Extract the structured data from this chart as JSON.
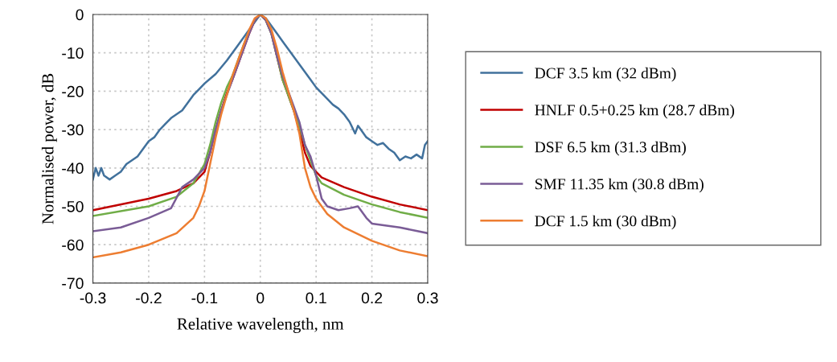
{
  "chart_data": {
    "type": "line",
    "xlabel": "Relative wavelength, nm",
    "ylabel": "Normalised power, dB",
    "xlim": [
      -0.3,
      0.3
    ],
    "xticks": [
      -0.3,
      -0.2,
      -0.1,
      0,
      0.1,
      0.2,
      0.3
    ],
    "ylim": [
      -70,
      0
    ],
    "yticks": [
      -70,
      -60,
      -50,
      -40,
      -30,
      -20,
      -10,
      0
    ],
    "grid": true,
    "legend": "right",
    "marker": "none",
    "line_style": "solid",
    "series": [
      {
        "name": "DCF 3.5 km (32 dBm)",
        "color": "#41719c",
        "x": [
          -0.3,
          -0.295,
          -0.29,
          -0.285,
          -0.28,
          -0.27,
          -0.26,
          -0.25,
          -0.24,
          -0.23,
          -0.22,
          -0.21,
          -0.2,
          -0.19,
          -0.18,
          -0.17,
          -0.16,
          -0.15,
          -0.14,
          -0.13,
          -0.12,
          -0.11,
          -0.1,
          -0.08,
          -0.06,
          -0.04,
          -0.02,
          -0.01,
          0,
          0.01,
          0.02,
          0.03,
          0.04,
          0.05,
          0.06,
          0.07,
          0.08,
          0.09,
          0.1,
          0.12,
          0.13,
          0.14,
          0.15,
          0.16,
          0.17,
          0.175,
          0.18,
          0.19,
          0.2,
          0.21,
          0.22,
          0.23,
          0.24,
          0.25,
          0.26,
          0.27,
          0.28,
          0.29,
          0.295,
          0.3
        ],
        "values": [
          -43,
          -40,
          -42,
          -40,
          -42,
          -43,
          -42,
          -41,
          -39,
          -38,
          -37,
          -35,
          -33,
          -32,
          -30,
          -28.5,
          -27,
          -26,
          -25,
          -23,
          -21,
          -19.5,
          -18,
          -15.5,
          -12,
          -8,
          -4,
          -2,
          0,
          -1,
          -3,
          -5,
          -7,
          -9,
          -11,
          -13,
          -15,
          -17,
          -19,
          -22,
          -23.5,
          -24.5,
          -26,
          -28,
          -31,
          -29,
          -30,
          -32,
          -33,
          -34,
          -33.5,
          -35,
          -36,
          -38,
          -37,
          -37.5,
          -36.5,
          -37.5,
          -34,
          -33
        ]
      },
      {
        "name": "HNLF 0.5+0.25 km (28.7 dBm)",
        "color": "#c00000",
        "x": [
          -0.3,
          -0.2,
          -0.15,
          -0.12,
          -0.1,
          -0.09,
          -0.08,
          -0.07,
          -0.06,
          -0.05,
          -0.04,
          -0.03,
          -0.02,
          -0.01,
          0,
          0.01,
          0.02,
          0.03,
          0.04,
          0.05,
          0.06,
          0.07,
          0.08,
          0.09,
          0.1,
          0.11,
          0.15,
          0.2,
          0.25,
          0.3
        ],
        "values": [
          -51,
          -48,
          -46,
          -44,
          -41,
          -36,
          -30,
          -25,
          -20.5,
          -17,
          -13,
          -9,
          -5,
          -1.5,
          0,
          -1.5,
          -5,
          -11,
          -17,
          -21,
          -25,
          -30,
          -36,
          -39.5,
          -41,
          -42.5,
          -45,
          -47.5,
          -49.5,
          -51
        ]
      },
      {
        "name": "DSF 6.5 km (31.3 dBm)",
        "color": "#70ad47",
        "x": [
          -0.3,
          -0.2,
          -0.15,
          -0.12,
          -0.1,
          -0.09,
          -0.08,
          -0.07,
          -0.06,
          -0.05,
          -0.04,
          -0.03,
          -0.02,
          -0.01,
          0,
          0.01,
          0.02,
          0.03,
          0.04,
          0.05,
          0.06,
          0.07,
          0.08,
          0.09,
          0.1,
          0.11,
          0.15,
          0.2,
          0.25,
          0.3
        ],
        "values": [
          -52.5,
          -50,
          -47.5,
          -44,
          -39,
          -34,
          -28,
          -23,
          -19,
          -16,
          -12,
          -8,
          -4.5,
          -1.5,
          0,
          -1.5,
          -5,
          -11,
          -17,
          -21,
          -25,
          -29,
          -34,
          -38,
          -42,
          -44,
          -47,
          -49.5,
          -51.5,
          -53
        ]
      },
      {
        "name": "SMF 11.35 km (30.8 dBm)",
        "color": "#7a5c96",
        "x": [
          -0.3,
          -0.25,
          -0.2,
          -0.16,
          -0.14,
          -0.12,
          -0.1,
          -0.09,
          -0.08,
          -0.07,
          -0.06,
          -0.05,
          -0.04,
          -0.03,
          -0.02,
          -0.01,
          0,
          0.01,
          0.02,
          0.03,
          0.04,
          0.05,
          0.06,
          0.07,
          0.08,
          0.09,
          0.1,
          0.11,
          0.12,
          0.14,
          0.16,
          0.175,
          0.19,
          0.2,
          0.25,
          0.3
        ],
        "values": [
          -56.5,
          -55.5,
          -53,
          -50.5,
          -45,
          -43,
          -40,
          -36,
          -30,
          -25,
          -21,
          -17,
          -13,
          -9,
          -5,
          -1.5,
          0,
          -1.5,
          -5,
          -11,
          -16,
          -20,
          -24,
          -28,
          -34,
          -37,
          -42,
          -48,
          -50,
          -51,
          -50.5,
          -50,
          -53,
          -54.5,
          -55.5,
          -57
        ]
      },
      {
        "name": "DCF 1.5 km (30 dBm)",
        "color": "#ed7d31",
        "x": [
          -0.3,
          -0.25,
          -0.2,
          -0.15,
          -0.12,
          -0.11,
          -0.1,
          -0.09,
          -0.08,
          -0.07,
          -0.06,
          -0.05,
          -0.04,
          -0.03,
          -0.02,
          -0.01,
          0,
          0.01,
          0.02,
          0.03,
          0.04,
          0.05,
          0.06,
          0.07,
          0.08,
          0.09,
          0.1,
          0.12,
          0.15,
          0.2,
          0.25,
          0.3
        ],
        "values": [
          -63.3,
          -62,
          -60,
          -57,
          -53,
          -50,
          -46,
          -39,
          -32,
          -26,
          -21,
          -16,
          -12,
          -8,
          -4,
          -1,
          0,
          -1,
          -4,
          -9,
          -15,
          -20,
          -25,
          -31,
          -40,
          -45,
          -48,
          -52,
          -55.5,
          -59,
          -61.5,
          -63
        ]
      }
    ]
  }
}
